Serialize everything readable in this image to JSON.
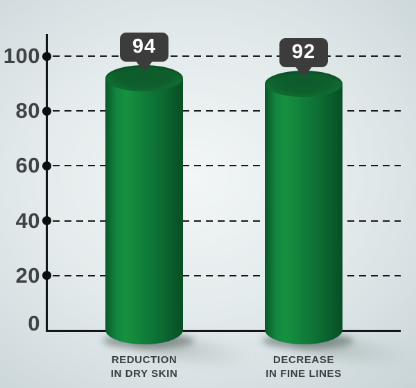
{
  "chart_data": {
    "type": "bar",
    "title": "",
    "bar_shape": "3d-cylinder",
    "categories": [
      "REDUCTION IN DRY SKIN",
      "DECREASE IN FINE LINES"
    ],
    "category_lines": [
      [
        "REDUCTION",
        "IN DRY SKIN"
      ],
      [
        "DECREASE",
        "IN FINE LINES"
      ]
    ],
    "values": [
      94,
      92
    ],
    "value_labels": [
      "94",
      "92"
    ],
    "ylim": [
      0,
      100
    ],
    "yticks": [
      0,
      20,
      40,
      60,
      80,
      100
    ],
    "ytick_labels": [
      "0",
      "20",
      "40",
      "60",
      "80",
      "100"
    ],
    "xlabel": "",
    "ylabel": "",
    "legend": "none",
    "grid": {
      "horizontal": true,
      "style": "dashed",
      "color": "#16191b"
    },
    "value_callout_style": "dark rounded speech bubble above each bar",
    "colors": {
      "bar": "#0f7d39",
      "bar_highlight": "#17913f",
      "bar_edge_dark": "#074f25",
      "bar_top_face": "#0d5a2b",
      "callout_bg": "#3c3c3c",
      "callout_text": "#ffffff",
      "axis": "#141719",
      "tick_dot": "#0b0d0e",
      "tick_label": "#3e4346",
      "category_label": "#393d40",
      "background_center": "#f2f6f6",
      "background_edge": "#b7c4c9"
    }
  }
}
